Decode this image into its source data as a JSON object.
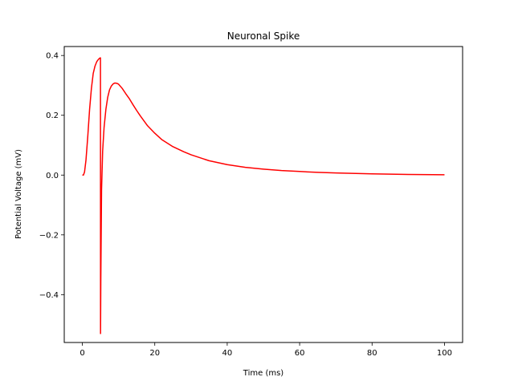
{
  "chart_data": {
    "type": "line",
    "title": "Neuronal Spike",
    "xlabel": "Time (ms)",
    "ylabel": "Potential Voltage (mV)",
    "xlim": [
      -5,
      105
    ],
    "ylim": [
      -0.56,
      0.43
    ],
    "xticks": [
      0,
      20,
      40,
      60,
      80,
      100
    ],
    "yticks": [
      -0.4,
      -0.2,
      0.0,
      0.2,
      0.4
    ],
    "xtick_labels": [
      "0",
      "20",
      "40",
      "60",
      "80",
      "100"
    ],
    "ytick_labels": [
      "−0.4",
      "−0.2",
      "0.0",
      "0.2",
      "0.4"
    ],
    "grid": false,
    "series": [
      {
        "color": "#ff0000",
        "x": [
          0,
          0.3,
          0.6,
          1.0,
          1.5,
          2.0,
          2.5,
          3.0,
          3.5,
          4.0,
          4.5,
          4.9,
          5.0,
          5.02,
          5.1,
          5.3,
          5.6,
          6.0,
          6.5,
          7.0,
          7.5,
          8.0,
          8.5,
          9.0,
          9.5,
          10,
          11,
          12,
          13,
          14,
          15,
          16,
          18,
          20,
          22,
          25,
          28,
          30,
          35,
          40,
          45,
          50,
          55,
          60,
          65,
          70,
          80,
          90,
          100
        ],
        "y": [
          0.0,
          0.0,
          0.01,
          0.05,
          0.13,
          0.22,
          0.29,
          0.34,
          0.365,
          0.38,
          0.388,
          0.392,
          0.392,
          -0.53,
          -0.35,
          -0.05,
          0.08,
          0.16,
          0.22,
          0.26,
          0.285,
          0.298,
          0.305,
          0.308,
          0.307,
          0.304,
          0.29,
          0.272,
          0.255,
          0.235,
          0.216,
          0.198,
          0.165,
          0.14,
          0.118,
          0.095,
          0.078,
          0.068,
          0.048,
          0.035,
          0.026,
          0.02,
          0.015,
          0.012,
          0.009,
          0.007,
          0.004,
          0.002,
          0.001
        ]
      }
    ]
  }
}
